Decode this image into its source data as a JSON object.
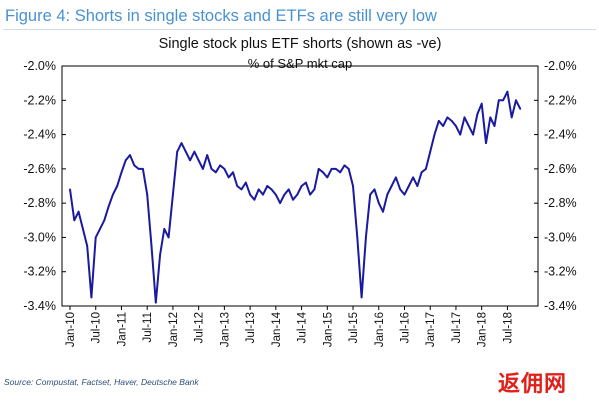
{
  "figure_title": "Figure 4: Shorts in single stocks and ETFs are still very low",
  "source": "Source: Compustat, Factset, Haver, Deutsche Bank",
  "watermark": "返佣网",
  "colors": {
    "line": "#1a1aa0",
    "title": "#4a92cf",
    "source": "#2b4f7a",
    "watermark": "#e0201a"
  },
  "chart_data": {
    "type": "line",
    "title": "Single stock plus ETF shorts (shown as -ve)",
    "subtitle": "% of S&P mkt cap",
    "ylim": [
      -3.4,
      -2.0
    ],
    "yticks": [
      -2.0,
      -2.2,
      -2.4,
      -2.6,
      -2.8,
      -3.0,
      -3.2,
      -3.4
    ],
    "ytick_labels": [
      "-2.0%",
      "-2.2%",
      "-2.4%",
      "-2.6%",
      "-2.8%",
      "-3.0%",
      "-3.2%",
      "-3.4%"
    ],
    "ytick_labels_right": [
      "-2.0%",
      "-2.2%",
      "-2.4%",
      "-2.6%",
      "-2.8%",
      "-3.0%",
      "-3.2%",
      "-3.4%"
    ],
    "x_categories": [
      "Jan-10",
      "Jul-10",
      "Jan-11",
      "Jul-11",
      "Jan-12",
      "Jul-12",
      "Jan-13",
      "Jul-13",
      "Jan-14",
      "Jul-14",
      "Jan-15",
      "Jul-15",
      "Jan-16",
      "Jul-16",
      "Jan-17",
      "Jul-17",
      "Jan-18",
      "Jul-18"
    ],
    "grid": false,
    "legend": "none",
    "series": [
      {
        "x": [
          "2010-01",
          "2010-02",
          "2010-03",
          "2010-04",
          "2010-05",
          "2010-06",
          "2010-07",
          "2010-08",
          "2010-09",
          "2010-10",
          "2010-11",
          "2010-12",
          "2011-01",
          "2011-02",
          "2011-03",
          "2011-04",
          "2011-05",
          "2011-06",
          "2011-07",
          "2011-08",
          "2011-09",
          "2011-10",
          "2011-11",
          "2011-12",
          "2012-01",
          "2012-02",
          "2012-03",
          "2012-04",
          "2012-05",
          "2012-06",
          "2012-07",
          "2012-08",
          "2012-09",
          "2012-10",
          "2012-11",
          "2012-12",
          "2013-01",
          "2013-02",
          "2013-03",
          "2013-04",
          "2013-05",
          "2013-06",
          "2013-07",
          "2013-08",
          "2013-09",
          "2013-10",
          "2013-11",
          "2013-12",
          "2014-01",
          "2014-02",
          "2014-03",
          "2014-04",
          "2014-05",
          "2014-06",
          "2014-07",
          "2014-08",
          "2014-09",
          "2014-10",
          "2014-11",
          "2014-12",
          "2015-01",
          "2015-02",
          "2015-03",
          "2015-04",
          "2015-05",
          "2015-06",
          "2015-07",
          "2015-08",
          "2015-09",
          "2015-10",
          "2015-11",
          "2015-12",
          "2016-01",
          "2016-02",
          "2016-03",
          "2016-04",
          "2016-05",
          "2016-06",
          "2016-07",
          "2016-08",
          "2016-09",
          "2016-10",
          "2016-11",
          "2016-12",
          "2017-01",
          "2017-02",
          "2017-03",
          "2017-04",
          "2017-05",
          "2017-06",
          "2017-07",
          "2017-08",
          "2017-09",
          "2017-10",
          "2017-11",
          "2017-12",
          "2018-01",
          "2018-02",
          "2018-03",
          "2018-04",
          "2018-05",
          "2018-06",
          "2018-07",
          "2018-08",
          "2018-09",
          "2018-10"
        ],
        "values": [
          -2.72,
          -2.9,
          -2.85,
          -2.95,
          -3.05,
          -3.35,
          -3.0,
          -2.95,
          -2.9,
          -2.82,
          -2.75,
          -2.7,
          -2.62,
          -2.55,
          -2.52,
          -2.58,
          -2.6,
          -2.6,
          -2.75,
          -3.05,
          -3.38,
          -3.1,
          -2.95,
          -3.0,
          -2.75,
          -2.5,
          -2.45,
          -2.5,
          -2.55,
          -2.5,
          -2.55,
          -2.6,
          -2.52,
          -2.6,
          -2.62,
          -2.58,
          -2.6,
          -2.65,
          -2.62,
          -2.7,
          -2.72,
          -2.68,
          -2.75,
          -2.78,
          -2.72,
          -2.75,
          -2.7,
          -2.72,
          -2.75,
          -2.8,
          -2.75,
          -2.72,
          -2.78,
          -2.75,
          -2.7,
          -2.68,
          -2.75,
          -2.72,
          -2.6,
          -2.62,
          -2.65,
          -2.6,
          -2.6,
          -2.62,
          -2.58,
          -2.6,
          -2.7,
          -3.0,
          -3.35,
          -3.0,
          -2.75,
          -2.72,
          -2.8,
          -2.85,
          -2.75,
          -2.7,
          -2.65,
          -2.72,
          -2.75,
          -2.7,
          -2.65,
          -2.7,
          -2.62,
          -2.6,
          -2.5,
          -2.4,
          -2.32,
          -2.35,
          -2.3,
          -2.32,
          -2.35,
          -2.4,
          -2.3,
          -2.35,
          -2.4,
          -2.28,
          -2.22,
          -2.45,
          -2.3,
          -2.35,
          -2.2,
          -2.2,
          -2.15,
          -2.3,
          -2.2,
          -2.25
        ]
      }
    ]
  }
}
